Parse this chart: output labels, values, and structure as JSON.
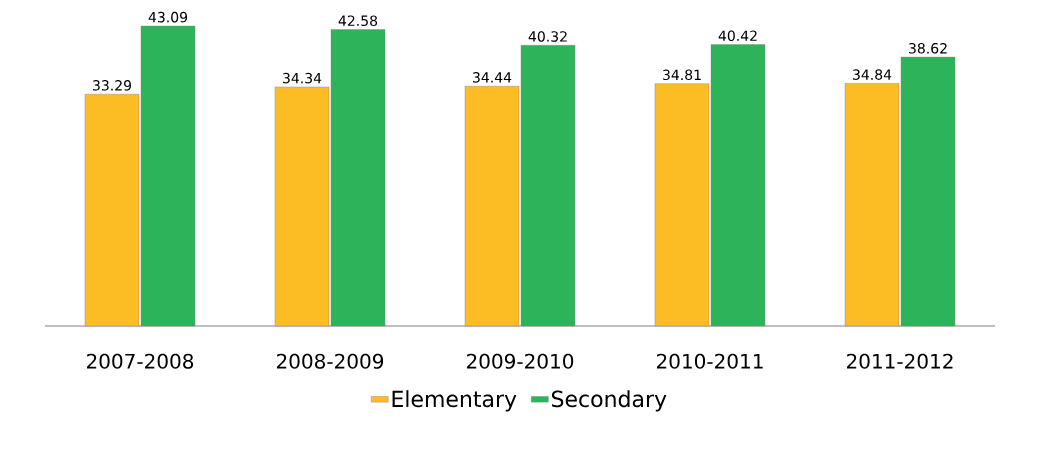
{
  "chart_data": {
    "type": "bar",
    "categories": [
      "2007-2008",
      "2008-2009",
      "2009-2010",
      "2010-2011",
      "2011-2012"
    ],
    "series": [
      {
        "name": "Elementary",
        "color": "#fcbc24",
        "values": [
          33.29,
          34.34,
          34.44,
          34.81,
          34.84
        ],
        "value_labels": [
          "33.29",
          "34.34",
          "34.44",
          "34.81",
          "34.84"
        ]
      },
      {
        "name": "Secondary",
        "color": "#2db45a",
        "values": [
          43.09,
          42.58,
          40.32,
          40.42,
          38.62
        ],
        "value_labels": [
          "43.09",
          "42.58",
          "40.32",
          "40.42",
          "38.62"
        ]
      }
    ],
    "legend": "bottom"
  }
}
